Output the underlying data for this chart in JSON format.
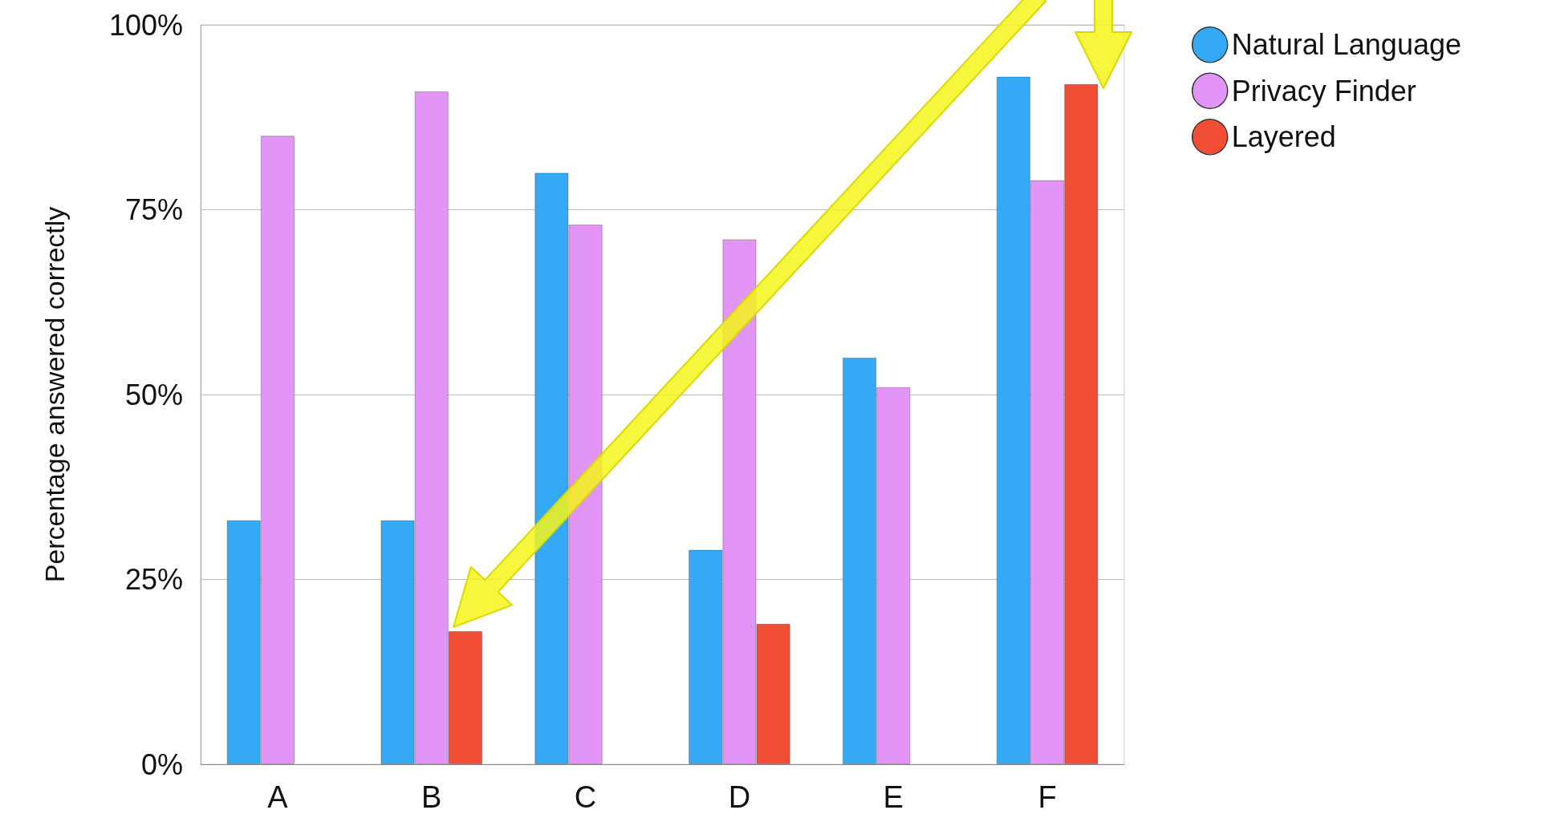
{
  "chart_data": {
    "type": "bar",
    "ylabel": "Percentage answered correctly",
    "categories": [
      "A",
      "B",
      "C",
      "D",
      "E",
      "F"
    ],
    "series": [
      {
        "name": "Natural Language",
        "color": "#35a9f5",
        "values": [
          33,
          33,
          80,
          29,
          55,
          93
        ]
      },
      {
        "name": "Privacy Finder",
        "color": "#e295f7",
        "values": [
          85,
          91,
          73,
          71,
          51,
          79
        ]
      },
      {
        "name": "Layered",
        "color": "#f24e35",
        "values": [
          null,
          18,
          null,
          19,
          null,
          92
        ]
      }
    ],
    "ylim": [
      0,
      100
    ],
    "yticks": [
      {
        "value": 0,
        "label": "0%"
      },
      {
        "value": 25,
        "label": "25%"
      },
      {
        "value": 50,
        "label": "50%"
      },
      {
        "value": 75,
        "label": "75%"
      },
      {
        "value": 100,
        "label": "100%"
      }
    ],
    "grid": "y",
    "legend": "top right"
  }
}
